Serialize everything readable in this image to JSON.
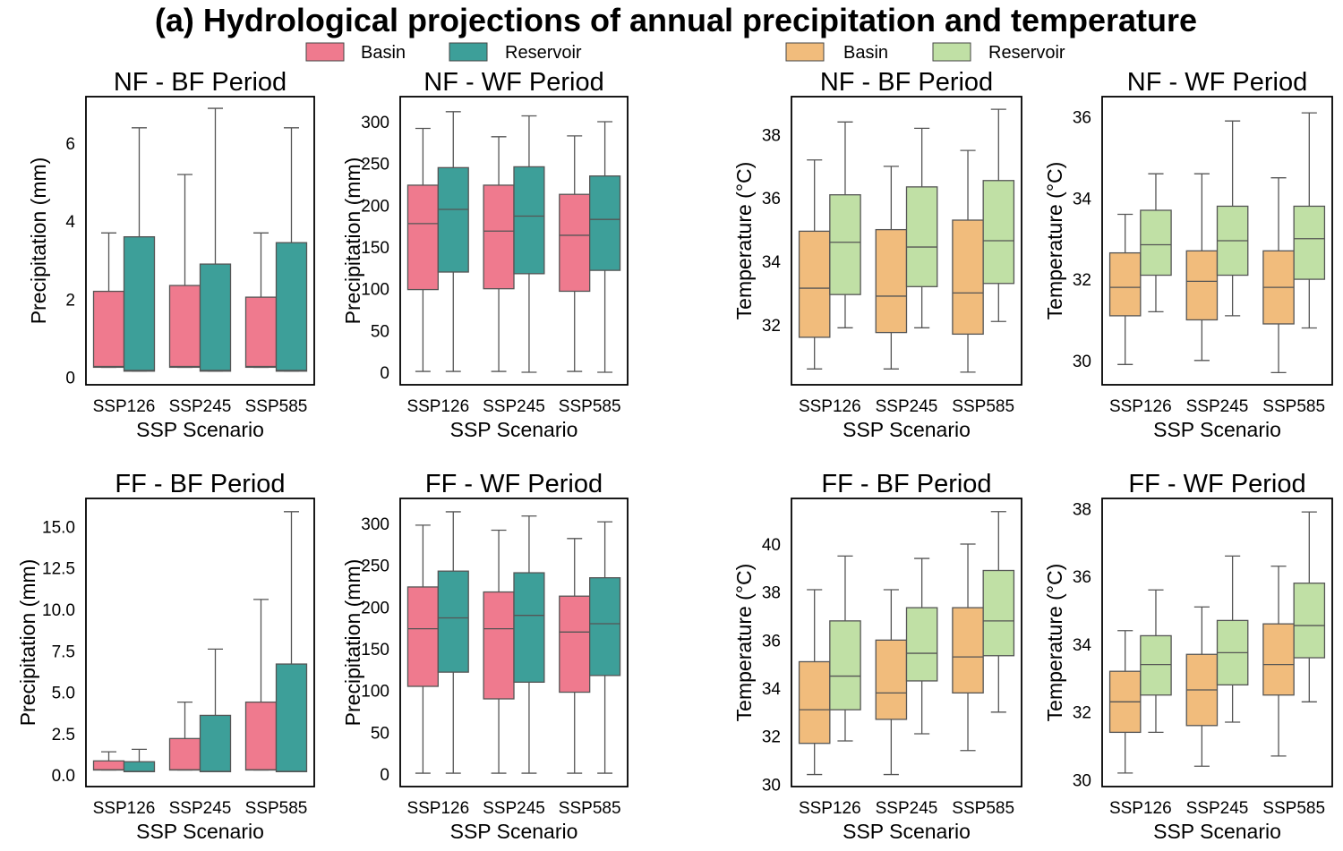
{
  "figure": {
    "title": "(a) Hydrological projections of annual precipitation and temperature"
  },
  "legends": [
    {
      "entries": [
        {
          "name": "Basin",
          "color": "#ef7a8e"
        },
        {
          "name": "Reservoir",
          "color": "#3d9f99"
        }
      ]
    },
    {
      "entries": [
        {
          "name": "Basin",
          "color": "#f1bc7c"
        },
        {
          "name": "Reservoir",
          "color": "#c0e0a5"
        }
      ]
    }
  ],
  "chart_data": [
    {
      "type": "box",
      "title": "NF - BF Period",
      "xlabel": "SSP Scenario",
      "ylabel": "Precipitation (mm)",
      "categories": [
        "SSP126",
        "SSP245",
        "SSP585"
      ],
      "ylim": [
        -0.2,
        7.2
      ],
      "yticks": [
        0,
        2,
        4,
        6
      ],
      "series": [
        {
          "name": "Basin",
          "color": "#ef7a8e",
          "boxes": [
            {
              "whislo": 0.25,
              "q1": 0.25,
              "med": 0.27,
              "q3": 2.2,
              "whishi": 3.7
            },
            {
              "whislo": 0.25,
              "q1": 0.25,
              "med": 0.27,
              "q3": 2.35,
              "whishi": 5.2
            },
            {
              "whislo": 0.25,
              "q1": 0.25,
              "med": 0.27,
              "q3": 2.05,
              "whishi": 3.7
            }
          ]
        },
        {
          "name": "Reservoir",
          "color": "#3d9f99",
          "boxes": [
            {
              "whislo": 0.15,
              "q1": 0.15,
              "med": 0.17,
              "q3": 3.6,
              "whishi": 6.4
            },
            {
              "whislo": 0.15,
              "q1": 0.15,
              "med": 0.17,
              "q3": 2.9,
              "whishi": 6.9
            },
            {
              "whislo": 0.15,
              "q1": 0.15,
              "med": 0.17,
              "q3": 3.45,
              "whishi": 6.4
            }
          ]
        }
      ]
    },
    {
      "type": "box",
      "title": "NF - WF Period",
      "xlabel": "SSP Scenario",
      "ylabel": "Precipitation (mm)",
      "categories": [
        "SSP126",
        "SSP245",
        "SSP585"
      ],
      "ylim": [
        -15,
        330
      ],
      "yticks": [
        0,
        50,
        100,
        150,
        200,
        250,
        300
      ],
      "series": [
        {
          "name": "Basin",
          "color": "#ef7a8e",
          "boxes": [
            {
              "whislo": 1,
              "q1": 99,
              "med": 178,
              "q3": 224,
              "whishi": 292
            },
            {
              "whislo": 1,
              "q1": 100,
              "med": 169,
              "q3": 224,
              "whishi": 282
            },
            {
              "whislo": 1,
              "q1": 97,
              "med": 164,
              "q3": 213,
              "whishi": 283
            }
          ]
        },
        {
          "name": "Reservoir",
          "color": "#3d9f99",
          "boxes": [
            {
              "whislo": 1,
              "q1": 120,
              "med": 195,
              "q3": 245,
              "whishi": 312
            },
            {
              "whislo": 0,
              "q1": 118,
              "med": 187,
              "q3": 246,
              "whishi": 307
            },
            {
              "whislo": 0,
              "q1": 122,
              "med": 183,
              "q3": 235,
              "whishi": 300
            }
          ]
        }
      ]
    },
    {
      "type": "box",
      "title": "NF - BF Period",
      "xlabel": "SSP Scenario",
      "ylabel": "Temperature (°C)",
      "categories": [
        "SSP126",
        "SSP245",
        "SSP585"
      ],
      "ylim": [
        30.1,
        39.2
      ],
      "yticks": [
        32,
        34,
        36,
        38
      ],
      "series": [
        {
          "name": "Basin",
          "color": "#f1bc7c",
          "boxes": [
            {
              "whislo": 30.6,
              "q1": 31.6,
              "med": 33.15,
              "q3": 34.95,
              "whishi": 37.2
            },
            {
              "whislo": 30.6,
              "q1": 31.75,
              "med": 32.9,
              "q3": 35.0,
              "whishi": 37.0
            },
            {
              "whislo": 30.5,
              "q1": 31.7,
              "med": 33.0,
              "q3": 35.3,
              "whishi": 37.5
            }
          ]
        },
        {
          "name": "Reservoir",
          "color": "#c0e0a5",
          "boxes": [
            {
              "whislo": 31.9,
              "q1": 32.95,
              "med": 34.6,
              "q3": 36.1,
              "whishi": 38.4
            },
            {
              "whislo": 31.9,
              "q1": 33.2,
              "med": 34.45,
              "q3": 36.35,
              "whishi": 38.2
            },
            {
              "whislo": 32.1,
              "q1": 33.3,
              "med": 34.65,
              "q3": 36.55,
              "whishi": 38.8
            }
          ]
        }
      ]
    },
    {
      "type": "box",
      "title": "NF - WF Period",
      "xlabel": "SSP Scenario",
      "ylabel": "Temperature (°C)",
      "categories": [
        "SSP126",
        "SSP245",
        "SSP585"
      ],
      "ylim": [
        29.4,
        36.5
      ],
      "yticks": [
        30,
        32,
        34,
        36
      ],
      "series": [
        {
          "name": "Basin",
          "color": "#f1bc7c",
          "boxes": [
            {
              "whislo": 29.9,
              "q1": 31.1,
              "med": 31.8,
              "q3": 32.65,
              "whishi": 33.6
            },
            {
              "whislo": 30.0,
              "q1": 31.0,
              "med": 31.95,
              "q3": 32.7,
              "whishi": 34.6
            },
            {
              "whislo": 29.7,
              "q1": 30.9,
              "med": 31.8,
              "q3": 32.7,
              "whishi": 34.5
            }
          ]
        },
        {
          "name": "Reservoir",
          "color": "#c0e0a5",
          "boxes": [
            {
              "whislo": 31.2,
              "q1": 32.1,
              "med": 32.85,
              "q3": 33.7,
              "whishi": 34.6
            },
            {
              "whislo": 31.1,
              "q1": 32.1,
              "med": 32.95,
              "q3": 33.8,
              "whishi": 35.9
            },
            {
              "whislo": 30.8,
              "q1": 32.0,
              "med": 33.0,
              "q3": 33.8,
              "whishi": 36.1
            }
          ]
        }
      ]
    },
    {
      "type": "box",
      "title": "FF - BF Period",
      "xlabel": "SSP Scenario",
      "ylabel": "Precipitation (mm)",
      "categories": [
        "SSP126",
        "SSP245",
        "SSP585"
      ],
      "ylim": [
        -0.7,
        16.7
      ],
      "yticks": [
        0.0,
        2.5,
        5.0,
        7.5,
        10.0,
        12.5,
        15.0
      ],
      "ytick_labels": [
        "0.0",
        "2.5",
        "5.0",
        "7.5",
        "10.0",
        "12.5",
        "15.0"
      ],
      "series": [
        {
          "name": "Basin",
          "color": "#ef7a8e",
          "boxes": [
            {
              "whislo": 0.3,
              "q1": 0.3,
              "med": 0.32,
              "q3": 0.85,
              "whishi": 1.4
            },
            {
              "whislo": 0.3,
              "q1": 0.3,
              "med": 0.32,
              "q3": 2.2,
              "whishi": 4.4
            },
            {
              "whislo": 0.3,
              "q1": 0.3,
              "med": 0.32,
              "q3": 4.4,
              "whishi": 10.6
            }
          ]
        },
        {
          "name": "Reservoir",
          "color": "#3d9f99",
          "boxes": [
            {
              "whislo": 0.2,
              "q1": 0.2,
              "med": 0.22,
              "q3": 0.8,
              "whishi": 1.55
            },
            {
              "whislo": 0.2,
              "q1": 0.2,
              "med": 0.22,
              "q3": 3.6,
              "whishi": 7.6
            },
            {
              "whislo": 0.2,
              "q1": 0.2,
              "med": 0.22,
              "q3": 6.7,
              "whishi": 15.9
            }
          ]
        }
      ]
    },
    {
      "type": "box",
      "title": "FF - WF Period",
      "xlabel": "SSP Scenario",
      "ylabel": "Precipitation (mm)",
      "categories": [
        "SSP126",
        "SSP245",
        "SSP585"
      ],
      "ylim": [
        -15,
        330
      ],
      "yticks": [
        0,
        50,
        100,
        150,
        200,
        250,
        300
      ],
      "series": [
        {
          "name": "Basin",
          "color": "#ef7a8e",
          "boxes": [
            {
              "whislo": 1,
              "q1": 105,
              "med": 174,
              "q3": 224,
              "whishi": 298
            },
            {
              "whislo": 1,
              "q1": 90,
              "med": 174,
              "q3": 218,
              "whishi": 292
            },
            {
              "whislo": 1,
              "q1": 98,
              "med": 170,
              "q3": 213,
              "whishi": 282
            }
          ]
        },
        {
          "name": "Reservoir",
          "color": "#3d9f99",
          "boxes": [
            {
              "whislo": 1,
              "q1": 122,
              "med": 187,
              "q3": 243,
              "whishi": 314
            },
            {
              "whislo": 1,
              "q1": 110,
              "med": 190,
              "q3": 241,
              "whishi": 309
            },
            {
              "whislo": 1,
              "q1": 118,
              "med": 180,
              "q3": 235,
              "whishi": 302
            }
          ]
        }
      ]
    },
    {
      "type": "box",
      "title": "FF - BF Period",
      "xlabel": "SSP Scenario",
      "ylabel": "Temperature (°C)",
      "categories": [
        "SSP126",
        "SSP245",
        "SSP585"
      ],
      "ylim": [
        29.9,
        41.9
      ],
      "yticks": [
        30,
        32,
        34,
        36,
        38,
        40
      ],
      "series": [
        {
          "name": "Basin",
          "color": "#f1bc7c",
          "boxes": [
            {
              "whislo": 30.4,
              "q1": 31.7,
              "med": 33.1,
              "q3": 35.1,
              "whishi": 38.1
            },
            {
              "whislo": 30.4,
              "q1": 32.7,
              "med": 33.8,
              "q3": 36.0,
              "whishi": 38.1
            },
            {
              "whislo": 31.4,
              "q1": 33.8,
              "med": 35.3,
              "q3": 37.35,
              "whishi": 40.0
            }
          ]
        },
        {
          "name": "Reservoir",
          "color": "#c0e0a5",
          "boxes": [
            {
              "whislo": 31.8,
              "q1": 33.1,
              "med": 34.5,
              "q3": 36.8,
              "whishi": 39.5
            },
            {
              "whislo": 32.1,
              "q1": 34.3,
              "med": 35.45,
              "q3": 37.35,
              "whishi": 39.4
            },
            {
              "whislo": 33.0,
              "q1": 35.35,
              "med": 36.8,
              "q3": 38.9,
              "whishi": 41.35
            }
          ]
        }
      ]
    },
    {
      "type": "box",
      "title": "FF - WF Period",
      "xlabel": "SSP Scenario",
      "ylabel": "Temperature (°C)",
      "categories": [
        "SSP126",
        "SSP245",
        "SSP585"
      ],
      "ylim": [
        29.8,
        38.3
      ],
      "yticks": [
        30,
        32,
        34,
        36,
        38
      ],
      "series": [
        {
          "name": "Basin",
          "color": "#f1bc7c",
          "boxes": [
            {
              "whislo": 30.2,
              "q1": 31.4,
              "med": 32.3,
              "q3": 33.2,
              "whishi": 34.4
            },
            {
              "whislo": 30.4,
              "q1": 31.6,
              "med": 32.65,
              "q3": 33.7,
              "whishi": 35.1
            },
            {
              "whislo": 30.7,
              "q1": 32.5,
              "med": 33.4,
              "q3": 34.6,
              "whishi": 36.3
            }
          ]
        },
        {
          "name": "Reservoir",
          "color": "#c0e0a5",
          "boxes": [
            {
              "whislo": 31.4,
              "q1": 32.5,
              "med": 33.4,
              "q3": 34.25,
              "whishi": 35.6
            },
            {
              "whislo": 31.7,
              "q1": 32.8,
              "med": 33.75,
              "q3": 34.7,
              "whishi": 36.6
            },
            {
              "whislo": 32.3,
              "q1": 33.6,
              "med": 34.55,
              "q3": 35.8,
              "whishi": 37.9
            }
          ]
        }
      ]
    }
  ]
}
